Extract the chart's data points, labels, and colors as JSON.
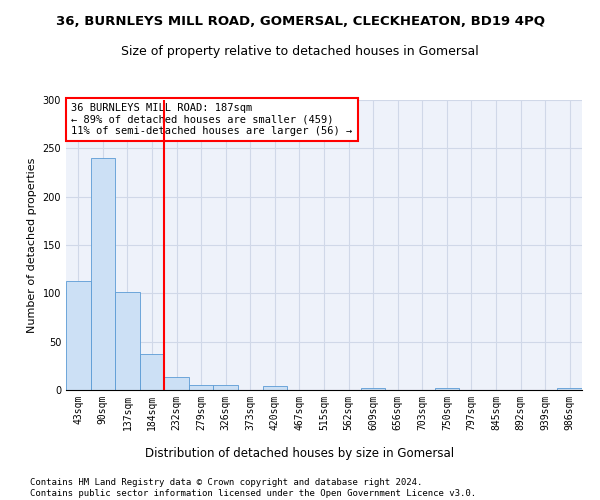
{
  "title": "36, BURNLEYS MILL ROAD, GOMERSAL, CLECKHEATON, BD19 4PQ",
  "subtitle": "Size of property relative to detached houses in Gomersal",
  "xlabel": "Distribution of detached houses by size in Gomersal",
  "ylabel": "Number of detached properties",
  "categories": [
    "43sqm",
    "90sqm",
    "137sqm",
    "184sqm",
    "232sqm",
    "279sqm",
    "326sqm",
    "373sqm",
    "420sqm",
    "467sqm",
    "515sqm",
    "562sqm",
    "609sqm",
    "656sqm",
    "703sqm",
    "750sqm",
    "797sqm",
    "845sqm",
    "892sqm",
    "939sqm",
    "986sqm"
  ],
  "values": [
    113,
    240,
    101,
    37,
    13,
    5,
    5,
    0,
    4,
    0,
    0,
    0,
    2,
    0,
    0,
    2,
    0,
    0,
    0,
    0,
    2
  ],
  "bar_color": "#cce0f5",
  "bar_edge_color": "#5b9bd5",
  "red_line_x": 3.5,
  "annotation_lines": [
    "36 BURNLEYS MILL ROAD: 187sqm",
    "← 89% of detached houses are smaller (459)",
    "11% of semi-detached houses are larger (56) →"
  ],
  "annotation_box_color": "white",
  "annotation_box_edge_color": "red",
  "red_vline_color": "red",
  "ylim": [
    0,
    300
  ],
  "yticks": [
    0,
    50,
    100,
    150,
    200,
    250,
    300
  ],
  "grid_color": "#d0d8e8",
  "background_color": "#eef2fa",
  "footer_line1": "Contains HM Land Registry data © Crown copyright and database right 2024.",
  "footer_line2": "Contains public sector information licensed under the Open Government Licence v3.0.",
  "title_fontsize": 9.5,
  "subtitle_fontsize": 9,
  "axis_label_fontsize": 8,
  "tick_fontsize": 7,
  "annotation_fontsize": 7.5,
  "footer_fontsize": 6.5
}
